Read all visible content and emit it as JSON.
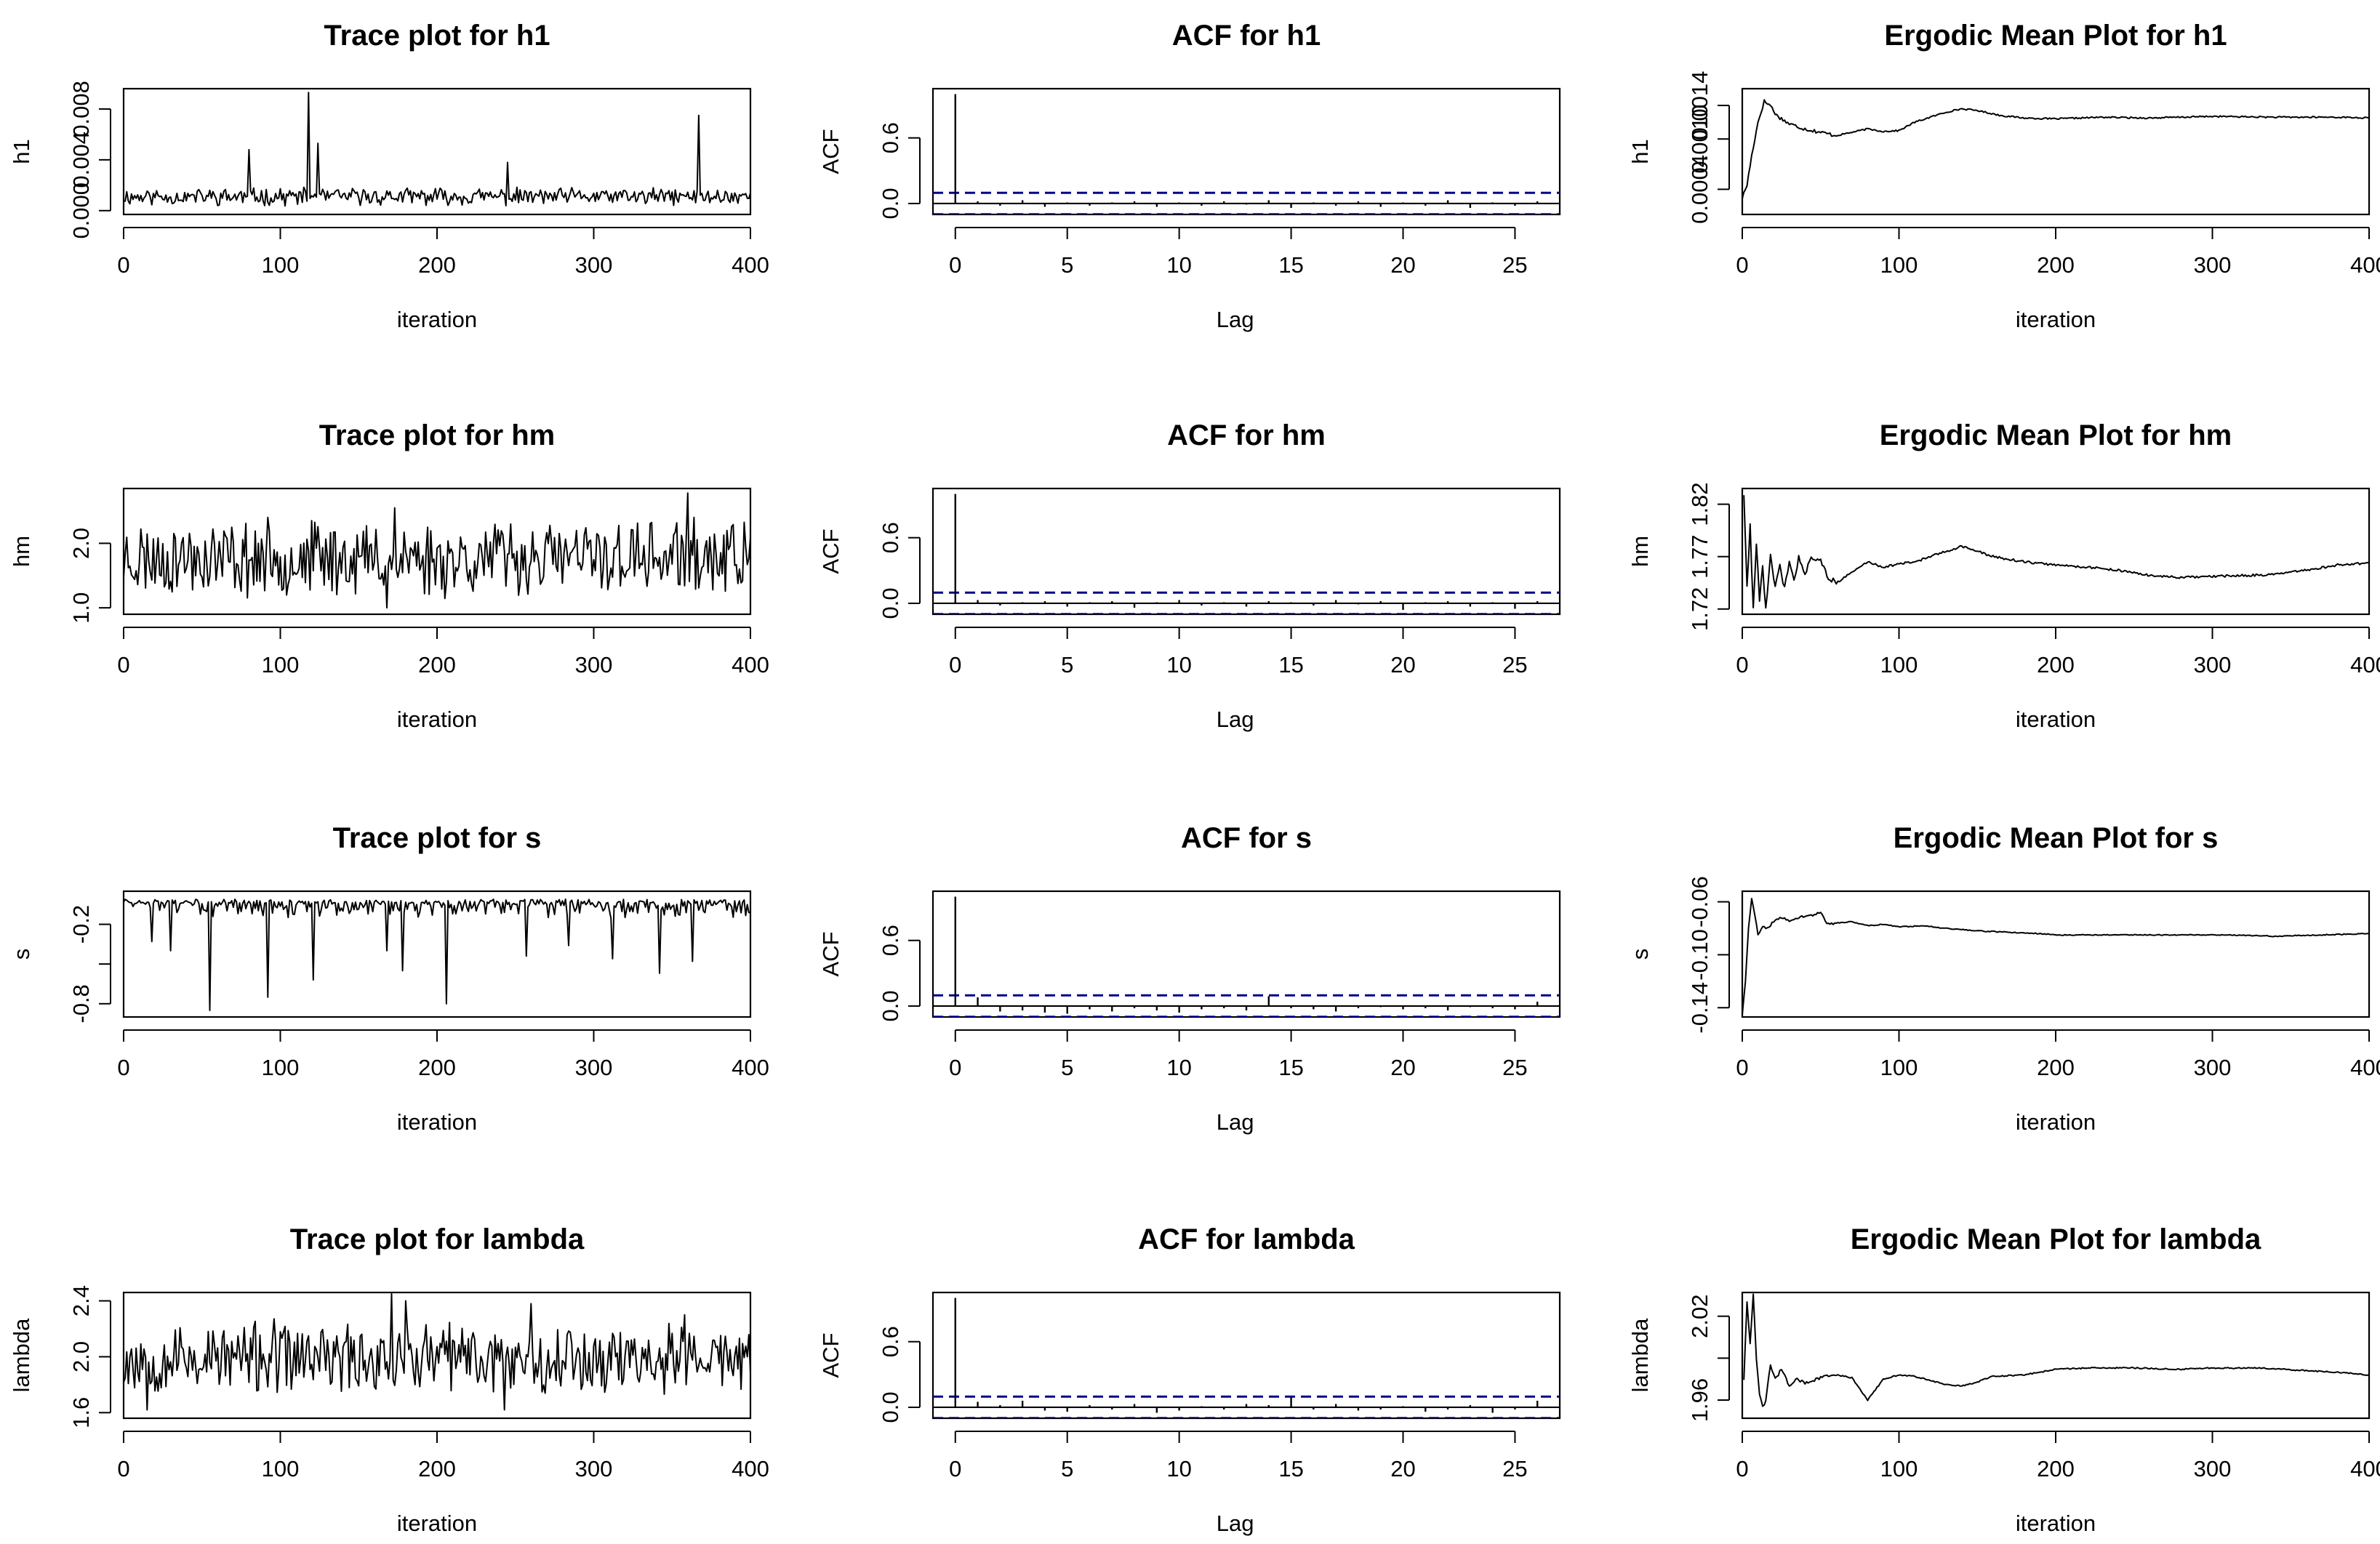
{
  "chart_data": [
    {
      "id": "trace-h1",
      "type": "line",
      "title": "Trace plot for h1",
      "xlabel": "iteration",
      "ylabel": "h1",
      "xlim": [
        0,
        400
      ],
      "ylim": [
        -0.0003,
        0.0096
      ],
      "xticks": [
        0,
        100,
        200,
        300,
        400
      ],
      "yticks": [
        0.0,
        0.004,
        0.008
      ],
      "ytick_labels": [
        "0.000",
        "0.004",
        "0.008"
      ],
      "gen": {
        "kind": "trace",
        "n": 401,
        "base": 0.0011,
        "amp": 0.0011,
        "floor": 0.0001,
        "spikes": [
          [
            118,
            0.0093
          ],
          [
            124,
            0.0053
          ],
          [
            367,
            0.0075
          ],
          [
            245,
            0.0038
          ],
          [
            80,
            0.0048
          ]
        ],
        "seed": 11
      }
    },
    {
      "id": "acf-h1",
      "type": "bar",
      "title": "ACF for h1",
      "xlabel": "Lag",
      "ylabel": "ACF",
      "xlim": [
        -1,
        27
      ],
      "ylim": [
        -0.1,
        1.05
      ],
      "xticks": [
        0,
        5,
        10,
        15,
        20,
        25
      ],
      "yticks": [
        0.0,
        0.6
      ],
      "ytick_labels": [
        "0.0",
        "0.6"
      ],
      "ci": 0.098,
      "acf": [
        1.0,
        0.02,
        -0.02,
        0.03,
        -0.03,
        0.01,
        -0.02,
        0.01,
        0.02,
        -0.03,
        0.01,
        -0.02,
        0.02,
        -0.01,
        0.03,
        -0.04,
        0.01,
        -0.02,
        0.02,
        -0.03,
        0.01,
        -0.02,
        0.03,
        -0.04,
        0.01,
        -0.02,
        0.02
      ]
    },
    {
      "id": "ergodic-h1",
      "type": "line",
      "title": "Ergodic Mean Plot for h1",
      "xlabel": "iteration",
      "ylabel": "h1",
      "xlim": [
        0,
        400
      ],
      "ylim": [
        0.0001,
        0.0016
      ],
      "xticks": [
        0,
        100,
        200,
        300,
        400
      ],
      "yticks": [
        0.0004,
        0.001,
        0.0014
      ],
      "ytick_labels": [
        "0.0004",
        "0.0010",
        "0.0014"
      ],
      "points": [
        [
          0,
          0.0003
        ],
        [
          3,
          0.00045
        ],
        [
          6,
          0.0008
        ],
        [
          10,
          0.0012
        ],
        [
          14,
          0.00145
        ],
        [
          18,
          0.0014
        ],
        [
          22,
          0.00128
        ],
        [
          30,
          0.00118
        ],
        [
          40,
          0.00112
        ],
        [
          50,
          0.00108
        ],
        [
          60,
          0.00104
        ],
        [
          70,
          0.00108
        ],
        [
          80,
          0.00112
        ],
        [
          90,
          0.00109
        ],
        [
          100,
          0.0011
        ],
        [
          110,
          0.0012
        ],
        [
          120,
          0.00126
        ],
        [
          130,
          0.00132
        ],
        [
          140,
          0.00136
        ],
        [
          150,
          0.00134
        ],
        [
          165,
          0.00128
        ],
        [
          180,
          0.00125
        ],
        [
          200,
          0.00124
        ],
        [
          230,
          0.00126
        ],
        [
          260,
          0.00125
        ],
        [
          300,
          0.00127
        ],
        [
          340,
          0.00126
        ],
        [
          380,
          0.00126
        ],
        [
          400,
          0.00125
        ]
      ],
      "noise": 1.8e-05
    },
    {
      "id": "trace-hm",
      "type": "line",
      "title": "Trace plot for hm",
      "xlabel": "iteration",
      "ylabel": "hm",
      "xlim": [
        0,
        400
      ],
      "ylim": [
        0.9,
        2.85
      ],
      "xticks": [
        0,
        100,
        200,
        300,
        400
      ],
      "yticks": [
        1.0,
        2.0
      ],
      "ytick_labels": [
        "1.0",
        "2.0"
      ],
      "gen": {
        "kind": "trace",
        "n": 401,
        "base": 1.77,
        "amp": 0.95,
        "floor": 1.05,
        "ceil": 2.8,
        "spikes": [
          [
            360,
            2.78
          ],
          [
            168,
            1.0
          ],
          [
            173,
            2.55
          ]
        ],
        "seed": 23
      }
    },
    {
      "id": "acf-hm",
      "type": "bar",
      "title": "ACF for hm",
      "xlabel": "Lag",
      "ylabel": "ACF",
      "xlim": [
        -1,
        27
      ],
      "ylim": [
        -0.1,
        1.05
      ],
      "xticks": [
        0,
        5,
        10,
        15,
        20,
        25
      ],
      "yticks": [
        0.0,
        0.6
      ],
      "ytick_labels": [
        "0.0",
        "0.6"
      ],
      "ci": 0.098,
      "acf": [
        1.0,
        0.03,
        -0.02,
        0.01,
        0.02,
        -0.03,
        0.01,
        0.02,
        -0.04,
        0.01,
        0.03,
        -0.02,
        0.01,
        -0.03,
        0.02,
        0.01,
        -0.02,
        0.03,
        -0.01,
        0.02,
        -0.06,
        0.01,
        0.02,
        -0.03,
        0.01,
        -0.05,
        0.02
      ]
    },
    {
      "id": "ergodic-hm",
      "type": "line",
      "title": "Ergodic Mean Plot for hm",
      "xlabel": "iteration",
      "ylabel": "hm",
      "xlim": [
        0,
        400
      ],
      "ylim": [
        1.715,
        1.835
      ],
      "xticks": [
        0,
        100,
        200,
        300,
        400
      ],
      "yticks": [
        1.72,
        1.77,
        1.82
      ],
      "ytick_labels": [
        "1.72",
        "1.77",
        "1.82"
      ],
      "points": [
        [
          1,
          1.83
        ],
        [
          3,
          1.74
        ],
        [
          5,
          1.8
        ],
        [
          7,
          1.72
        ],
        [
          9,
          1.78
        ],
        [
          11,
          1.73
        ],
        [
          13,
          1.76
        ],
        [
          15,
          1.72
        ],
        [
          18,
          1.77
        ],
        [
          21,
          1.74
        ],
        [
          24,
          1.76
        ],
        [
          27,
          1.74
        ],
        [
          30,
          1.765
        ],
        [
          33,
          1.745
        ],
        [
          36,
          1.77
        ],
        [
          40,
          1.755
        ],
        [
          45,
          1.77
        ],
        [
          50,
          1.765
        ],
        [
          55,
          1.75
        ],
        [
          60,
          1.745
        ],
        [
          70,
          1.755
        ],
        [
          80,
          1.765
        ],
        [
          90,
          1.76
        ],
        [
          100,
          1.763
        ],
        [
          110,
          1.765
        ],
        [
          120,
          1.77
        ],
        [
          130,
          1.775
        ],
        [
          140,
          1.78
        ],
        [
          150,
          1.775
        ],
        [
          160,
          1.77
        ],
        [
          180,
          1.765
        ],
        [
          200,
          1.762
        ],
        [
          220,
          1.76
        ],
        [
          240,
          1.757
        ],
        [
          260,
          1.752
        ],
        [
          280,
          1.75
        ],
        [
          300,
          1.751
        ],
        [
          320,
          1.752
        ],
        [
          340,
          1.753
        ],
        [
          360,
          1.757
        ],
        [
          380,
          1.762
        ],
        [
          400,
          1.764
        ]
      ],
      "noise": 0.0022
    },
    {
      "id": "trace-s",
      "type": "line",
      "title": "Trace plot for s",
      "xlabel": "iteration",
      "ylabel": "s",
      "xlim": [
        0,
        400
      ],
      "ylim": [
        -0.9,
        0.05
      ],
      "xticks": [
        0,
        100,
        200,
        300,
        400
      ],
      "yticks": [
        -0.8,
        -0.5,
        -0.2
      ],
      "ytick_labels": [
        "-0.8",
        "",
        "-0.2"
      ],
      "gen": {
        "kind": "skewtrace",
        "n": 401,
        "top": -0.01,
        "depth": 0.12,
        "spikes": [
          [
            55,
            -0.85
          ],
          [
            92,
            -0.75
          ],
          [
            121,
            -0.62
          ],
          [
            178,
            -0.55
          ],
          [
            206,
            -0.8
          ],
          [
            342,
            -0.57
          ],
          [
            312,
            -0.46
          ],
          [
            18,
            -0.33
          ],
          [
            168,
            -0.4
          ],
          [
            257,
            -0.44
          ],
          [
            363,
            -0.48
          ],
          [
            30,
            -0.4
          ],
          [
            284,
            -0.36
          ]
        ],
        "seed": 37
      }
    },
    {
      "id": "acf-s",
      "type": "bar",
      "title": "ACF for s",
      "xlabel": "Lag",
      "ylabel": "ACF",
      "xlim": [
        -1,
        27
      ],
      "ylim": [
        -0.1,
        1.05
      ],
      "xticks": [
        0,
        5,
        10,
        15,
        20,
        25
      ],
      "yticks": [
        0.0,
        0.6
      ],
      "ytick_labels": [
        "0.0",
        "0.6"
      ],
      "ci": 0.098,
      "acf": [
        1.0,
        0.08,
        -0.05,
        -0.04,
        -0.06,
        -0.07,
        -0.03,
        -0.05,
        -0.02,
        -0.04,
        -0.06,
        -0.03,
        -0.02,
        -0.04,
        0.09,
        -0.02,
        -0.03,
        -0.05,
        -0.02,
        -0.01,
        -0.03,
        -0.02,
        -0.04,
        -0.01,
        -0.02,
        -0.03,
        0.04
      ]
    },
    {
      "id": "ergodic-s",
      "type": "line",
      "title": "Ergodic Mean Plot for s",
      "xlabel": "iteration",
      "ylabel": "s",
      "xlim": [
        0,
        400
      ],
      "ylim": [
        -0.147,
        -0.052
      ],
      "xticks": [
        0,
        100,
        200,
        300,
        400
      ],
      "yticks": [
        -0.14,
        -0.1,
        -0.06
      ],
      "ytick_labels": [
        "-0.14",
        "-0.10",
        "-0.06"
      ],
      "points": [
        [
          0,
          -0.145
        ],
        [
          2,
          -0.12
        ],
        [
          4,
          -0.08
        ],
        [
          6,
          -0.058
        ],
        [
          8,
          -0.07
        ],
        [
          10,
          -0.085
        ],
        [
          13,
          -0.078
        ],
        [
          16,
          -0.08
        ],
        [
          20,
          -0.075
        ],
        [
          25,
          -0.072
        ],
        [
          30,
          -0.074
        ],
        [
          35,
          -0.072
        ],
        [
          40,
          -0.071
        ],
        [
          45,
          -0.07
        ],
        [
          50,
          -0.068
        ],
        [
          54,
          -0.077
        ],
        [
          60,
          -0.076
        ],
        [
          70,
          -0.075
        ],
        [
          80,
          -0.078
        ],
        [
          90,
          -0.077
        ],
        [
          100,
          -0.079
        ],
        [
          115,
          -0.078
        ],
        [
          130,
          -0.08
        ],
        [
          150,
          -0.082
        ],
        [
          170,
          -0.083
        ],
        [
          190,
          -0.084
        ],
        [
          200,
          -0.085
        ],
        [
          220,
          -0.085
        ],
        [
          250,
          -0.085
        ],
        [
          280,
          -0.085
        ],
        [
          310,
          -0.085
        ],
        [
          340,
          -0.086
        ],
        [
          370,
          -0.085
        ],
        [
          400,
          -0.084
        ]
      ],
      "noise": 0.0007
    },
    {
      "id": "trace-lambda",
      "type": "line",
      "title": "Trace plot for lambda",
      "xlabel": "iteration",
      "ylabel": "lambda",
      "xlim": [
        0,
        400
      ],
      "ylim": [
        1.56,
        2.46
      ],
      "xticks": [
        0,
        100,
        200,
        300,
        400
      ],
      "yticks": [
        1.6,
        2.0,
        2.4
      ],
      "ytick_labels": [
        "1.6",
        "2.0",
        "2.4"
      ],
      "gen": {
        "kind": "trace",
        "n": 401,
        "base": 1.99,
        "amp": 0.42,
        "floor": 1.6,
        "ceil": 2.45,
        "spikes": [
          [
            171,
            2.45
          ],
          [
            180,
            2.4
          ],
          [
            243,
            1.62
          ],
          [
            15,
            1.62
          ],
          [
            358,
            2.3
          ],
          [
            260,
            2.38
          ]
        ],
        "seed": 53
      }
    },
    {
      "id": "acf-lambda",
      "type": "bar",
      "title": "ACF for lambda",
      "xlabel": "Lag",
      "ylabel": "ACF",
      "xlim": [
        -1,
        27
      ],
      "ylim": [
        -0.1,
        1.05
      ],
      "xticks": [
        0,
        5,
        10,
        15,
        20,
        25
      ],
      "yticks": [
        0.0,
        0.6
      ],
      "ytick_labels": [
        "0.0",
        "0.6"
      ],
      "ci": 0.098,
      "acf": [
        1.0,
        0.05,
        0.02,
        0.06,
        -0.03,
        -0.04,
        0.02,
        -0.02,
        0.03,
        -0.05,
        -0.03,
        0.01,
        -0.02,
        0.03,
        0.02,
        0.09,
        -0.02,
        0.03,
        -0.03,
        -0.02,
        0.01,
        -0.04,
        -0.02,
        0.02,
        -0.05,
        -0.02,
        0.06
      ]
    },
    {
      "id": "ergodic-lambda",
      "type": "line",
      "title": "Ergodic Mean Plot for lambda",
      "xlabel": "iteration",
      "ylabel": "lambda",
      "xlim": [
        0,
        400
      ],
      "ylim": [
        1.947,
        2.037
      ],
      "xticks": [
        0,
        100,
        200,
        300,
        400
      ],
      "yticks": [
        1.96,
        1.99,
        2.02
      ],
      "ytick_labels": [
        "1.96",
        "",
        "2.02"
      ],
      "points": [
        [
          1,
          1.975
        ],
        [
          3,
          2.03
        ],
        [
          5,
          2.0
        ],
        [
          7,
          2.035
        ],
        [
          9,
          1.99
        ],
        [
          11,
          1.965
        ],
        [
          13,
          1.955
        ],
        [
          15,
          1.96
        ],
        [
          18,
          1.985
        ],
        [
          21,
          1.975
        ],
        [
          25,
          1.982
        ],
        [
          30,
          1.97
        ],
        [
          35,
          1.975
        ],
        [
          40,
          1.972
        ],
        [
          50,
          1.976
        ],
        [
          60,
          1.978
        ],
        [
          70,
          1.976
        ],
        [
          80,
          1.96
        ],
        [
          90,
          1.975
        ],
        [
          100,
          1.978
        ],
        [
          110,
          1.977
        ],
        [
          120,
          1.974
        ],
        [
          130,
          1.971
        ],
        [
          140,
          1.97
        ],
        [
          150,
          1.973
        ],
        [
          160,
          1.977
        ],
        [
          180,
          1.978
        ],
        [
          200,
          1.982
        ],
        [
          220,
          1.983
        ],
        [
          250,
          1.983
        ],
        [
          280,
          1.982
        ],
        [
          300,
          1.983
        ],
        [
          330,
          1.983
        ],
        [
          360,
          1.981
        ],
        [
          380,
          1.98
        ],
        [
          400,
          1.978
        ]
      ],
      "noise": 0.0009
    }
  ]
}
